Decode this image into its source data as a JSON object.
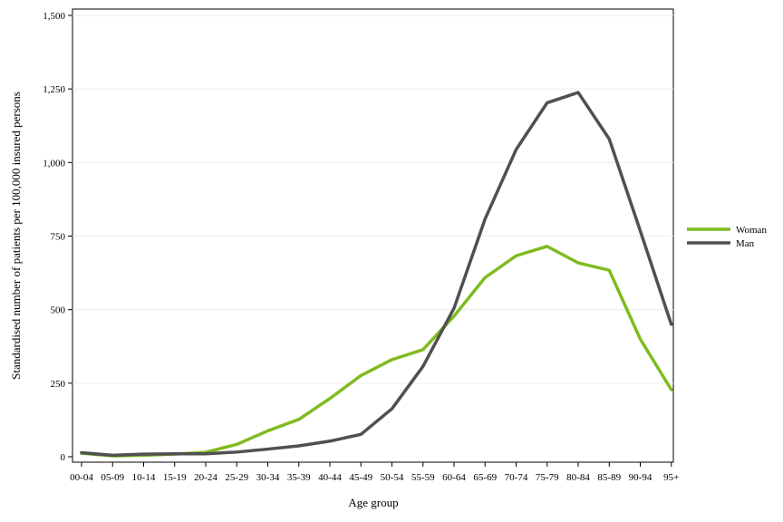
{
  "chart_data": {
    "type": "line",
    "xlabel": "Age group",
    "ylabel": "Standardised number of patients per 100,000 insured persons",
    "ylim": [
      0,
      1500
    ],
    "yticks": [
      0,
      250,
      500,
      750,
      1000,
      1250,
      1500
    ],
    "ytick_labels": [
      "0",
      "250",
      "500",
      "750",
      "1,000",
      "1,250",
      "1,500"
    ],
    "grid": "horizontal",
    "legend_position": "right",
    "categories": [
      "00-04",
      "05-09",
      "10-14",
      "15-19",
      "20-24",
      "25-29",
      "30-34",
      "35-39",
      "40-44",
      "45-49",
      "50-54",
      "55-59",
      "60-64",
      "65-69",
      "70-74",
      "75-79",
      "80-84",
      "85-89",
      "90-94",
      "95+"
    ],
    "series": [
      {
        "name": "Woman",
        "color": "#7fbb1f",
        "values": [
          12,
          3,
          5,
          9,
          15,
          42,
          88,
          127,
          198,
          276,
          330,
          364,
          478,
          609,
          683,
          715,
          659,
          634,
          400,
          228
        ]
      },
      {
        "name": "Man",
        "color": "#505050",
        "values": [
          14,
          5,
          9,
          10,
          10,
          16,
          26,
          37,
          53,
          76,
          163,
          307,
          505,
          808,
          1044,
          1203,
          1238,
          1080,
          768,
          450
        ]
      }
    ]
  }
}
